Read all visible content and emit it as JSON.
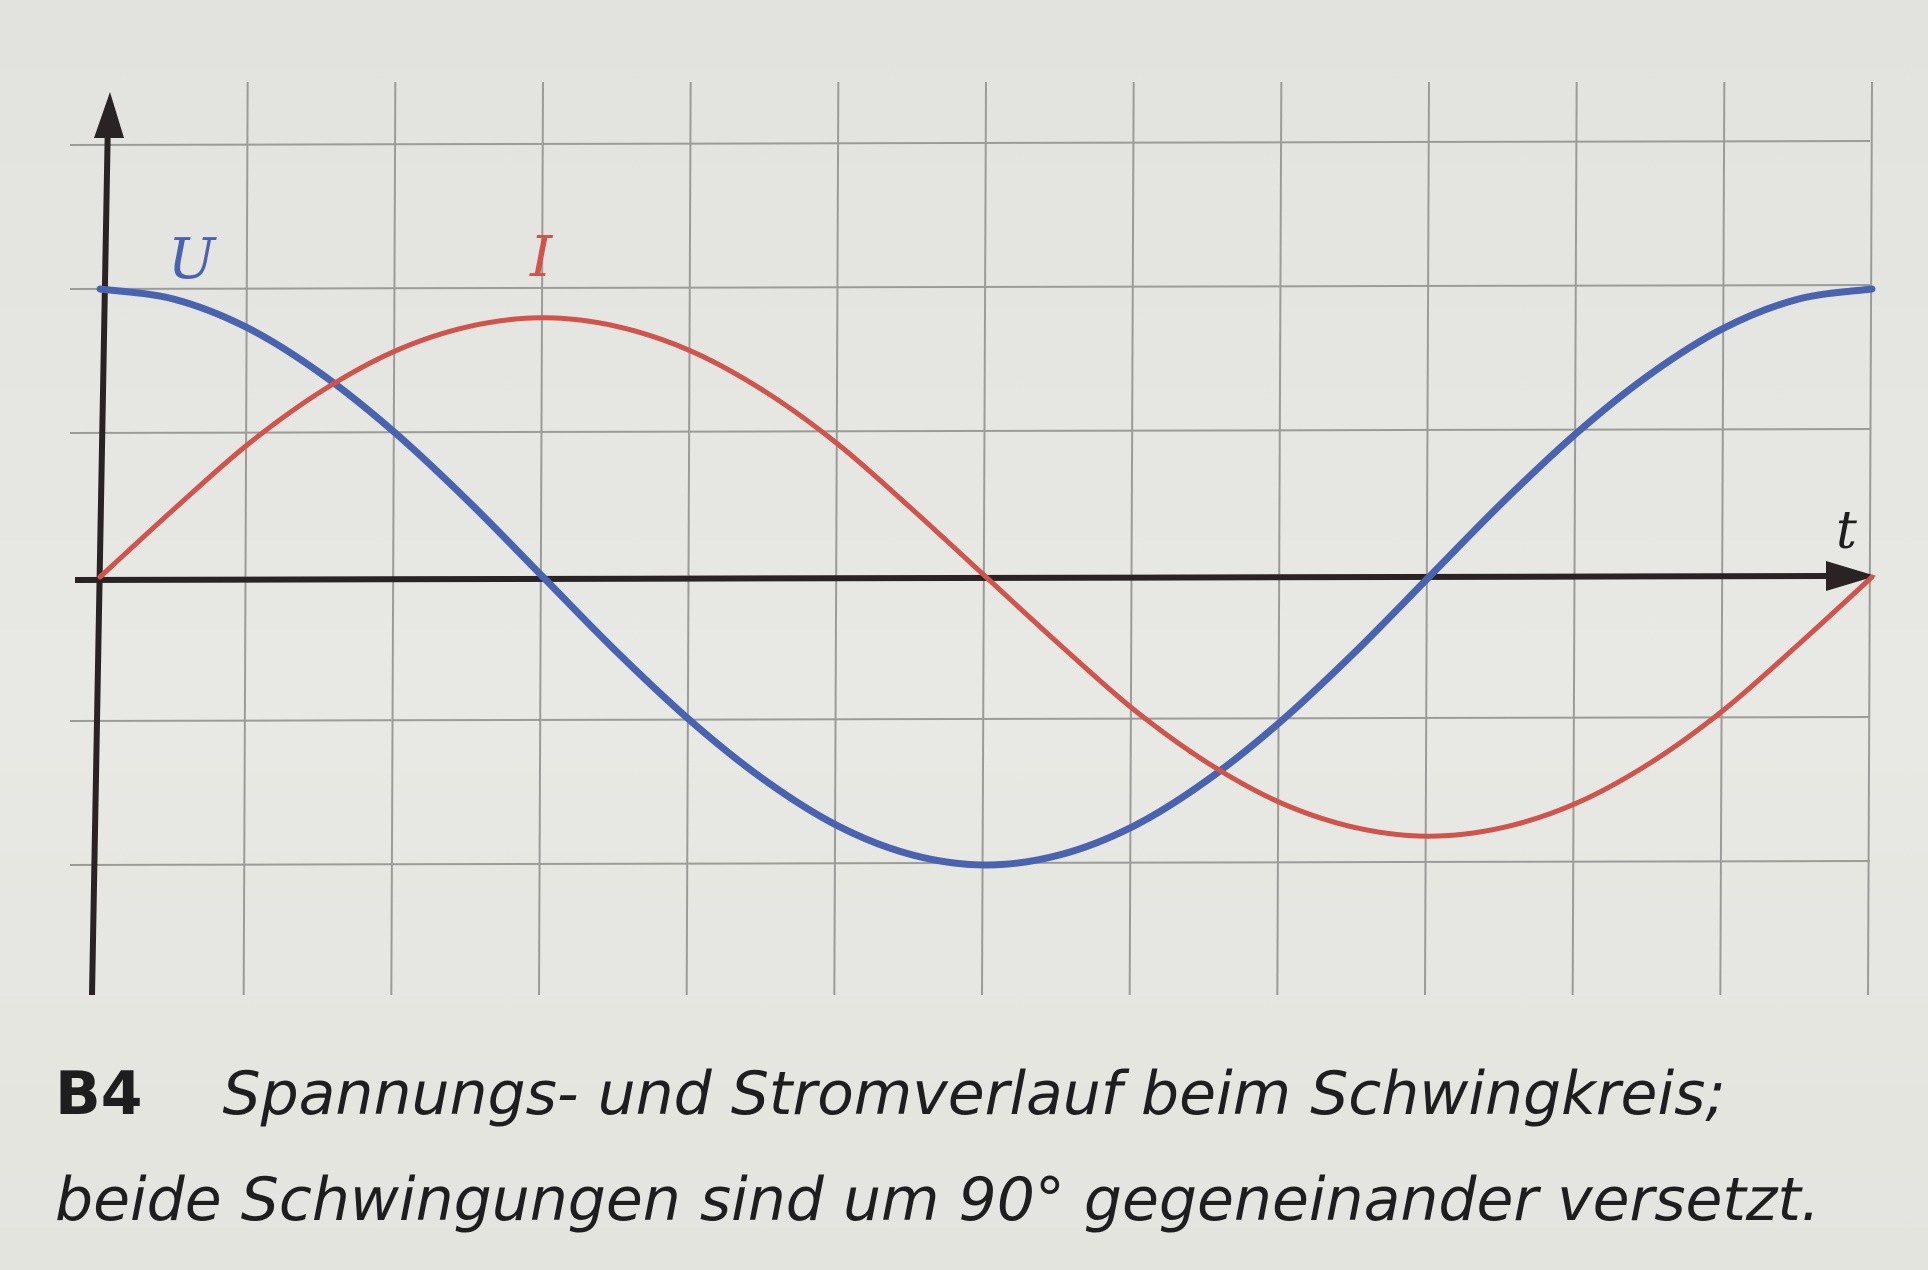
{
  "chart_data": {
    "type": "line",
    "title": "",
    "xlabel": "t",
    "ylabel": "",
    "x_unit": "grid squares",
    "xlim": [
      0,
      12
    ],
    "ylim": [
      -2,
      2
    ],
    "grid": true,
    "series": [
      {
        "name": "U",
        "color": "#4a63b0",
        "x": [
          0,
          0.5,
          1,
          1.5,
          2,
          2.5,
          3,
          3.5,
          4,
          4.5,
          5,
          5.5,
          6,
          6.5,
          7,
          7.5,
          8,
          8.5,
          9,
          9.5,
          10,
          10.5,
          11,
          11.5,
          12
        ],
        "values": [
          2.0,
          1.93,
          1.73,
          1.41,
          1.0,
          0.52,
          0.0,
          -0.52,
          -1.0,
          -1.41,
          -1.73,
          -1.93,
          -2.0,
          -1.93,
          -1.73,
          -1.41,
          -1.0,
          -0.52,
          0.0,
          0.52,
          1.0,
          1.41,
          1.73,
          1.93,
          2.0
        ]
      },
      {
        "name": "I",
        "color": "#d0534c",
        "x": [
          0,
          0.5,
          1,
          1.5,
          2,
          2.5,
          3,
          3.5,
          4,
          4.5,
          5,
          5.5,
          6,
          6.5,
          7,
          7.5,
          8,
          8.5,
          9,
          9.5,
          10,
          10.5,
          11,
          11.5,
          12
        ],
        "values": [
          0.0,
          0.47,
          0.92,
          1.29,
          1.57,
          1.74,
          1.8,
          1.74,
          1.57,
          1.29,
          0.92,
          0.47,
          0.0,
          -0.47,
          -0.92,
          -1.29,
          -1.57,
          -1.74,
          -1.8,
          -1.74,
          -1.57,
          -1.29,
          -0.92,
          -0.47,
          0.0
        ]
      }
    ]
  },
  "caption": {
    "figure_number": "B4",
    "line1": "Spannungs- und Stromverlauf beim Schwingkreis;",
    "line2": "beide Schwingungen sind um 90° gegeneinander versetzt."
  }
}
